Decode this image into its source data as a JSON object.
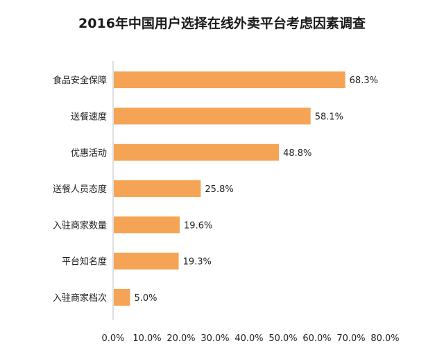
{
  "chart_data": {
    "type": "bar",
    "orientation": "horizontal",
    "title": "2016年中国用户选择在线外卖平台考虑因素调查",
    "categories": [
      "食品安全保障",
      "送餐速度",
      "优惠活动",
      "送餐人员态度",
      "入驻商家数量",
      "平台知名度",
      "入驻商家档次"
    ],
    "values": [
      68.3,
      58.1,
      48.8,
      25.8,
      19.6,
      19.3,
      5.0
    ],
    "value_labels": [
      "68.3%",
      "58.1%",
      "48.8%",
      "25.8%",
      "19.6%",
      "19.3%",
      "5.0%"
    ],
    "xlim": [
      0,
      80
    ],
    "x_ticks": [
      "0.0%",
      "10.0%",
      "20.0%",
      "30.0%",
      "40.0%",
      "50.0%",
      "60.0%",
      "70.0%",
      "80.0%"
    ],
    "xlabel": "",
    "ylabel": "",
    "grid": false,
    "legend": "none",
    "bar_color": "#f5a455",
    "axis_color": "#bfbfbf"
  }
}
